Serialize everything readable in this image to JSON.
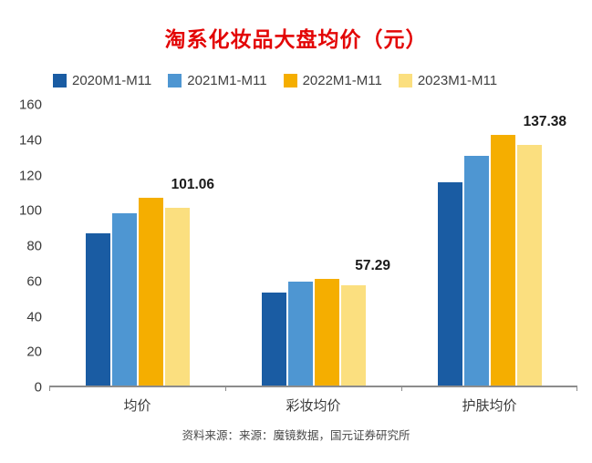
{
  "title": "淘系化妆品大盘均价（元）",
  "source_note": "资料来源：来源：魔镜数据，国元证券研究所",
  "chart_data": {
    "type": "bar",
    "title": "淘系化妆品大盘均价（元）",
    "categories": [
      "均价",
      "彩妆均价",
      "护肤均价"
    ],
    "series": [
      {
        "name": "2020M1-M11",
        "color": "#1a5ca3",
        "values": [
          87,
          53,
          116
        ]
      },
      {
        "name": "2021M1-M11",
        "color": "#4e96d2",
        "values": [
          98,
          59,
          131
        ]
      },
      {
        "name": "2022M1-M11",
        "color": "#f5ae00",
        "values": [
          107,
          61,
          143
        ]
      },
      {
        "name": "2023M1-M11",
        "color": "#fbdf7f",
        "values": [
          101.06,
          57.29,
          137.38
        ]
      }
    ],
    "value_labels": [
      "101.06",
      "57.29",
      "137.38"
    ],
    "ylim": [
      0,
      160
    ],
    "ytick_step": 20,
    "grid": false,
    "legend_position": "top"
  }
}
